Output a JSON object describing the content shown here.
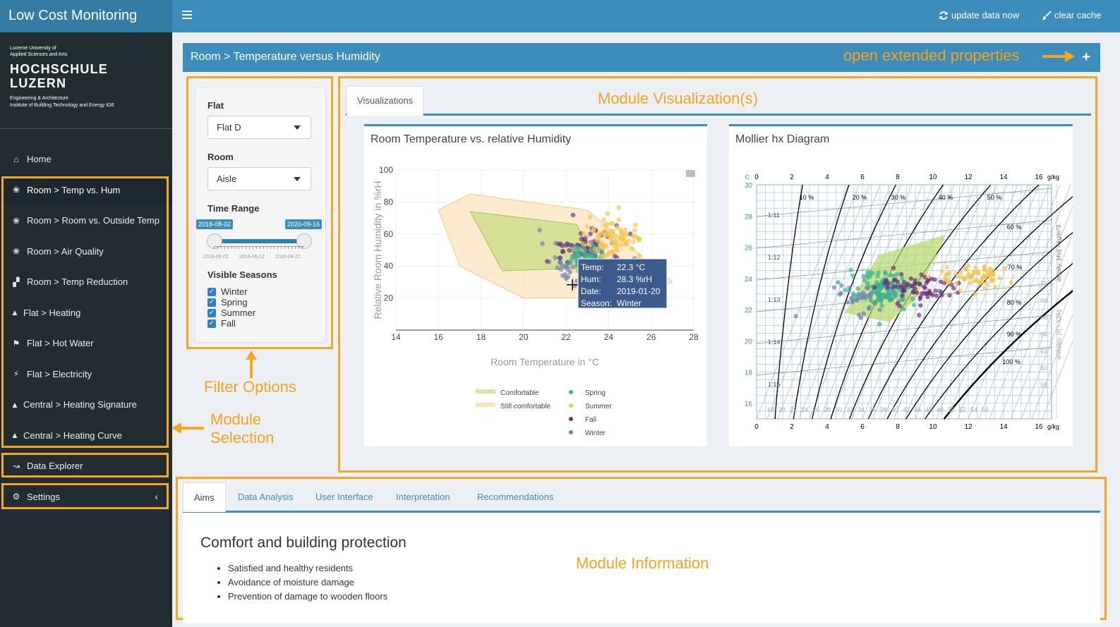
{
  "app": {
    "title": "Low Cost Monitoring"
  },
  "topbar": {
    "update_label": "update data now",
    "clear_label": "clear cache"
  },
  "logo": {
    "line1": "Lucerne University of",
    "line2": "Applied Sciences and Arts",
    "name1": "HOCHSCHULE",
    "name2": "LUZERN",
    "dept1": "Engineering & Architecture",
    "dept2": "Institute of Building Technology and Energy IGE"
  },
  "sidebar": {
    "items": [
      {
        "label": "Home",
        "icon": "home-icon"
      },
      {
        "label": "Room > Temp vs. Hum",
        "icon": "lotus-icon"
      },
      {
        "label": "Room > Room vs. Outside Temp",
        "icon": "lotus-icon"
      },
      {
        "label": "Room > Air Quality",
        "icon": "lotus-icon"
      },
      {
        "label": "Room > Temp Reduction",
        "icon": "thermometer-icon"
      },
      {
        "label": "Flat > Heating",
        "icon": "flame-icon"
      },
      {
        "label": "Flat > Hot Water",
        "icon": "shower-icon"
      },
      {
        "label": "Flat > Electricity",
        "icon": "bolt-icon"
      },
      {
        "label": "Central > Heating Signature",
        "icon": "flame-icon"
      },
      {
        "label": "Central > Heating Curve",
        "icon": "flame-icon"
      },
      {
        "label": "Data Explorer",
        "icon": "line-chart-icon"
      },
      {
        "label": "Settings",
        "icon": "gear-icon"
      }
    ]
  },
  "breadcrumb": {
    "text": "Room > Temperature versus Humidity"
  },
  "annotations": {
    "extended": "open extended properties",
    "visualization": "Module Visualization(s)",
    "filter": "Filter Options",
    "selection1": "Module",
    "selection2": "Selection",
    "information": "Module Information"
  },
  "filters": {
    "flat_label": "Flat",
    "flat_value": "Flat D",
    "room_label": "Room",
    "room_value": "Aisle",
    "time_label": "Time Range",
    "start": "2018-08-02",
    "end": "2020-09-16",
    "ticks": [
      "2018-08-02",
      "2019-06-12",
      "2020-04-22"
    ],
    "seasons_label": "Visible Seasons",
    "seasons": [
      "Winter",
      "Spring",
      "Summer",
      "Fall"
    ]
  },
  "tabs": {
    "visualizations": "Visualizations"
  },
  "colors": {
    "accent": "#3c8dbc",
    "annotation": "#f5a623",
    "spring": "#3bb48e",
    "summer": "#f4c44d",
    "fall": "#6b2f7b",
    "winter": "#6f7fb6",
    "comfortable": "#b5d86a",
    "still_comfortable": "#fde3bb"
  },
  "chart_data": [
    {
      "type": "scatter",
      "title": "Room Temperature vs. relative Humidity",
      "xlabel": "Room Temperature in °C",
      "ylabel": "Relative Room Humidity in %rH",
      "xlim": [
        14,
        28
      ],
      "ylim": [
        0,
        100
      ],
      "xticks": [
        "14",
        "16",
        "18",
        "20",
        "22",
        "24",
        "26",
        "28"
      ],
      "yticks": [
        "20",
        "40",
        "60",
        "80",
        "100"
      ],
      "legend": [
        {
          "name": "Comfortable",
          "kind": "area"
        },
        {
          "name": "Still comfortable",
          "kind": "area"
        },
        {
          "name": "Spring",
          "kind": "point"
        },
        {
          "name": "Summer",
          "kind": "point"
        },
        {
          "name": "Fall",
          "kind": "point"
        },
        {
          "name": "Winter",
          "kind": "point"
        }
      ],
      "tooltip": {
        "lines": [
          [
            "Temp:",
            "22.3 °C"
          ],
          [
            "Hum:",
            "28.3 %rH"
          ],
          [
            "Date:",
            "2019-01-20"
          ],
          [
            "Season:",
            "Winter"
          ]
        ]
      },
      "regions": {
        "comfortable": [
          [
            17.5,
            74
          ],
          [
            22.5,
            66
          ],
          [
            23.5,
            39
          ],
          [
            19,
            37
          ]
        ],
        "still_comfortable": [
          [
            16,
            75
          ],
          [
            17.5,
            85
          ],
          [
            23,
            75
          ],
          [
            27,
            30
          ],
          [
            25,
            20
          ],
          [
            20,
            20
          ],
          [
            17,
            40
          ]
        ]
      },
      "clusters": [
        {
          "series": "Winter",
          "cx": 22.3,
          "cy": 42,
          "sx": 0.75,
          "sy": 7,
          "n": 40
        },
        {
          "series": "Fall",
          "cx": 22.8,
          "cy": 52,
          "sx": 0.9,
          "sy": 6,
          "n": 60
        },
        {
          "series": "Spring",
          "cx": 23.0,
          "cy": 47,
          "sx": 0.6,
          "sy": 4,
          "n": 45
        },
        {
          "series": "Summer",
          "cx": 24.3,
          "cy": 58,
          "sx": 0.65,
          "sy": 6,
          "n": 90
        }
      ]
    },
    {
      "type": "scatter",
      "title": "Mollier hx Diagram",
      "xlabel": "g/kg",
      "ylabel": "C",
      "xlim": [
        0,
        17
      ],
      "ylim": [
        15,
        30
      ],
      "xticks": [
        "0",
        "2",
        "4",
        "6",
        "8",
        "10",
        "12",
        "14",
        "16"
      ],
      "yticks": [
        "16",
        "18",
        "20",
        "22",
        "24",
        "26",
        "28",
        "30"
      ],
      "rh_labels": [
        "10 %",
        "20 %",
        "30 %",
        "40 %",
        "50 %",
        "60 %",
        "70 %",
        "80 %",
        "90 %",
        "100 %"
      ],
      "density_labels": [
        "1:11",
        "1:12",
        "1:13",
        "1:14",
        "1:15"
      ],
      "enthalpy_labels": [
        "18",
        "20",
        "22",
        "24",
        "26",
        "28",
        "30",
        "32",
        "34",
        "36",
        "38",
        "40",
        "42",
        "44",
        "46",
        "48",
        "50",
        "52",
        "54",
        "56",
        "58",
        "60",
        "62",
        "64",
        "66",
        "68",
        "70"
      ],
      "density_axis_label": "density: [rho] = kg/m^3",
      "enthalpy_axis_label": "enthalpy: [h] = kJ/kg",
      "comfort_zone": [
        [
          5,
          21.8
        ],
        [
          6.9,
          25.5
        ],
        [
          10.7,
          26.8
        ],
        [
          9,
          22.6
        ],
        [
          7.5,
          21.2
        ]
      ],
      "clusters": [
        {
          "series": "Winter",
          "cx": 6.5,
          "cy": 22.8,
          "sx": 1.0,
          "sy": 0.5,
          "n": 50
        },
        {
          "series": "Spring",
          "cx": 7.2,
          "cy": 23.3,
          "sx": 1.0,
          "sy": 0.55,
          "n": 110
        },
        {
          "series": "Fall",
          "cx": 9.2,
          "cy": 23.4,
          "sx": 1.1,
          "sy": 0.55,
          "n": 70
        },
        {
          "series": "Summer",
          "cx": 12.2,
          "cy": 24.1,
          "sx": 1.0,
          "sy": 0.45,
          "n": 70
        }
      ]
    }
  ],
  "bottom": {
    "tabs": [
      "Aims",
      "Data Analysis",
      "User Interface",
      "Interpretation",
      "Recommendations"
    ],
    "heading": "Comfort and building protection",
    "bullets": [
      "Satisfied and healthy residents",
      "Avoidance of moisture damage",
      "Prevention of damage to wooden floors"
    ]
  }
}
